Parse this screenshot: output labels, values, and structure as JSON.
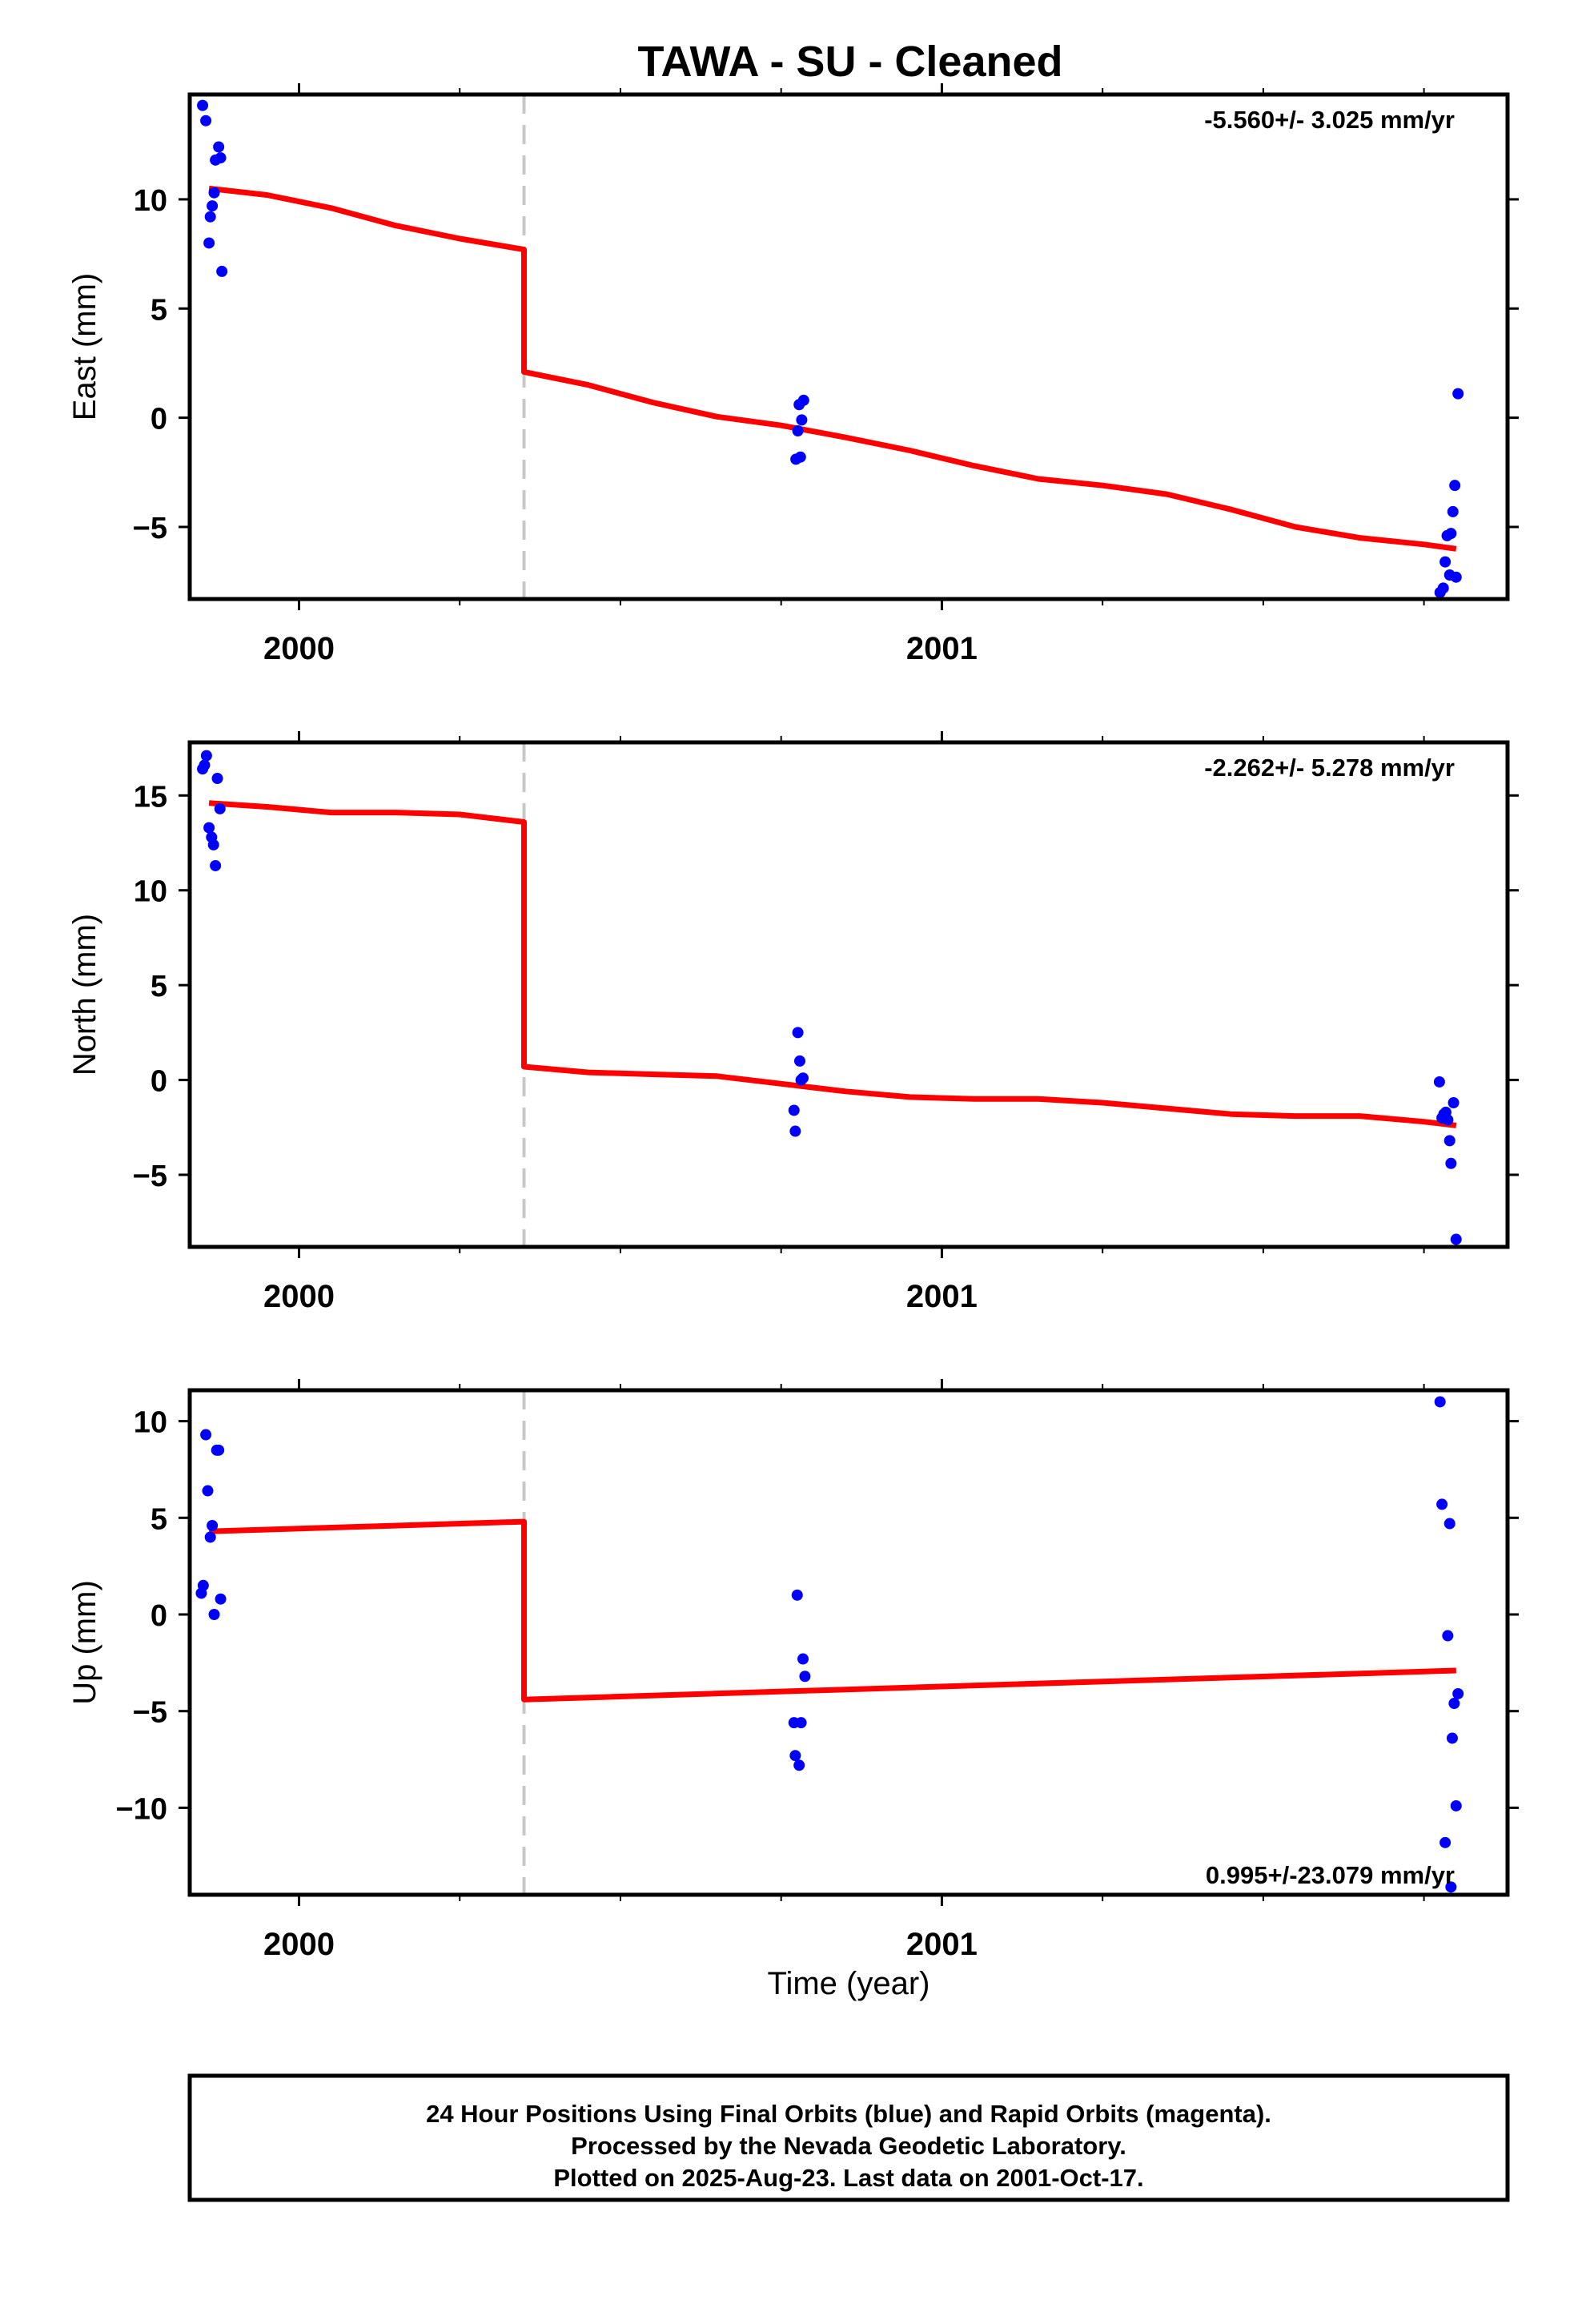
{
  "title": "TAWA  - SU - Cleaned",
  "xlabel": "Time (year)",
  "colors": {
    "data": "#0000ff",
    "model": "#ff0000",
    "break": "#c8c8c8",
    "frame": "#000000"
  },
  "footer": {
    "lines": [
      "24 Hour Positions Using Final Orbits (blue) and Rapid Orbits (magenta).",
      "Processed by the Nevada Geodetic Laboratory.",
      "Plotted on 2025-Aug-23. Last data on 2001-Oct-17."
    ]
  },
  "chart_data": [
    {
      "type": "scatter",
      "name": "east",
      "ylabel": "East (mm)",
      "rate_label": "-5.560+/- 3.025 mm/yr",
      "xlim": [
        1999.83,
        2001.88
      ],
      "ylim": [
        -8.3,
        14.8
      ],
      "x_ticks": [
        2000,
        2001
      ],
      "x_minor_ticks": [
        2000.25,
        2000.5,
        2000.75,
        2001.25,
        2001.5,
        2001.75
      ],
      "y_ticks": [
        -5,
        0,
        5,
        10
      ],
      "y_tick_labels": [
        "−5",
        "0",
        "5",
        "10"
      ],
      "break_x": 2000.35,
      "points": [
        [
          1999.85,
          14.3
        ],
        [
          1999.855,
          13.6
        ],
        [
          1999.86,
          8.0
        ],
        [
          1999.862,
          9.2
        ],
        [
          1999.865,
          9.7
        ],
        [
          1999.868,
          10.3
        ],
        [
          1999.87,
          11.8
        ],
        [
          1999.875,
          12.4
        ],
        [
          1999.878,
          11.9
        ],
        [
          1999.88,
          6.7
        ],
        [
          2000.773,
          -1.9
        ],
        [
          2000.776,
          -0.6
        ],
        [
          2000.778,
          0.6
        ],
        [
          2000.78,
          -1.8
        ],
        [
          2000.782,
          -0.1
        ],
        [
          2000.785,
          0.8
        ],
        [
          2001.775,
          -8.0
        ],
        [
          2001.78,
          -7.8
        ],
        [
          2001.783,
          -6.6
        ],
        [
          2001.786,
          -5.4
        ],
        [
          2001.79,
          -7.2
        ],
        [
          2001.792,
          -5.3
        ],
        [
          2001.795,
          -4.3
        ],
        [
          2001.798,
          -3.1
        ],
        [
          2001.8,
          -7.3
        ],
        [
          2001.803,
          1.1
        ]
      ],
      "model": [
        [
          [
            1999.86,
            10.5
          ],
          [
            1999.95,
            10.2
          ],
          [
            2000.05,
            9.6
          ],
          [
            2000.15,
            8.8
          ],
          [
            2000.25,
            8.2
          ],
          [
            2000.35,
            7.7
          ]
        ],
        [
          [
            2000.35,
            2.1
          ],
          [
            2000.45,
            1.5
          ],
          [
            2000.55,
            0.7
          ],
          [
            2000.65,
            0.05
          ],
          [
            2000.75,
            -0.35
          ],
          [
            2000.85,
            -0.9
          ],
          [
            2000.95,
            -1.5
          ],
          [
            2001.05,
            -2.2
          ],
          [
            2001.15,
            -2.8
          ],
          [
            2001.25,
            -3.1
          ],
          [
            2001.35,
            -3.5
          ],
          [
            2001.45,
            -4.2
          ],
          [
            2001.55,
            -5.0
          ],
          [
            2001.65,
            -5.5
          ],
          [
            2001.75,
            -5.8
          ],
          [
            2001.8,
            -6.0
          ]
        ]
      ]
    },
    {
      "type": "scatter",
      "name": "north",
      "ylabel": "North (mm)",
      "rate_label": "-2.262+/- 5.278 mm/yr",
      "xlim": [
        1999.83,
        2001.88
      ],
      "ylim": [
        -8.8,
        17.8
      ],
      "x_ticks": [
        2000,
        2001
      ],
      "x_minor_ticks": [
        2000.25,
        2000.5,
        2000.75,
        2001.25,
        2001.5,
        2001.75
      ],
      "y_ticks": [
        -5,
        0,
        5,
        10,
        15
      ],
      "y_tick_labels": [
        "−5",
        "0",
        "5",
        "10",
        "15"
      ],
      "break_x": 2000.35,
      "points": [
        [
          1999.85,
          16.4
        ],
        [
          1999.853,
          16.6
        ],
        [
          1999.856,
          17.1
        ],
        [
          1999.86,
          13.3
        ],
        [
          1999.864,
          12.8
        ],
        [
          1999.867,
          12.4
        ],
        [
          1999.87,
          11.3
        ],
        [
          1999.873,
          15.9
        ],
        [
          1999.877,
          14.3
        ],
        [
          2000.77,
          -1.6
        ],
        [
          2000.772,
          -2.7
        ],
        [
          2000.776,
          2.5
        ],
        [
          2000.779,
          1.0
        ],
        [
          2000.781,
          0.0
        ],
        [
          2000.784,
          0.1
        ],
        [
          2001.774,
          -0.1
        ],
        [
          2001.778,
          -2.0
        ],
        [
          2001.781,
          -1.8
        ],
        [
          2001.784,
          -1.7
        ],
        [
          2001.787,
          -2.1
        ],
        [
          2001.79,
          -3.2
        ],
        [
          2001.792,
          -4.4
        ],
        [
          2001.796,
          -1.2
        ],
        [
          2001.8,
          -8.4
        ]
      ],
      "model": [
        [
          [
            1999.86,
            14.6
          ],
          [
            1999.95,
            14.4
          ],
          [
            2000.05,
            14.1
          ],
          [
            2000.15,
            14.1
          ],
          [
            2000.25,
            14.0
          ],
          [
            2000.35,
            13.6
          ]
        ],
        [
          [
            2000.35,
            0.7
          ],
          [
            2000.45,
            0.4
          ],
          [
            2000.55,
            0.3
          ],
          [
            2000.65,
            0.2
          ],
          [
            2000.75,
            -0.2
          ],
          [
            2000.85,
            -0.6
          ],
          [
            2000.95,
            -0.9
          ],
          [
            2001.05,
            -1.0
          ],
          [
            2001.15,
            -1.0
          ],
          [
            2001.25,
            -1.2
          ],
          [
            2001.35,
            -1.5
          ],
          [
            2001.45,
            -1.8
          ],
          [
            2001.55,
            -1.9
          ],
          [
            2001.65,
            -1.9
          ],
          [
            2001.75,
            -2.2
          ],
          [
            2001.8,
            -2.4
          ]
        ]
      ]
    },
    {
      "type": "scatter",
      "name": "up",
      "ylabel": "Up (mm)",
      "rate_label": "0.995+/-23.079 mm/yr",
      "xlim": [
        1999.83,
        2001.88
      ],
      "ylim": [
        -14.5,
        11.6
      ],
      "x_ticks": [
        2000,
        2001
      ],
      "x_minor_ticks": [
        2000.25,
        2000.5,
        2000.75,
        2001.25,
        2001.5,
        2001.75
      ],
      "y_ticks": [
        -10,
        -5,
        0,
        5,
        10
      ],
      "y_tick_labels": [
        "−10",
        "−5",
        "0",
        "5",
        "10"
      ],
      "break_x": 2000.35,
      "points": [
        [
          1999.848,
          1.1
        ],
        [
          1999.851,
          1.5
        ],
        [
          1999.855,
          9.3
        ],
        [
          1999.858,
          6.4
        ],
        [
          1999.862,
          4.0
        ],
        [
          1999.865,
          4.6
        ],
        [
          1999.868,
          0.0
        ],
        [
          1999.872,
          8.5
        ],
        [
          1999.875,
          8.5
        ],
        [
          1999.878,
          0.8
        ],
        [
          2000.77,
          -5.6
        ],
        [
          2000.772,
          -7.3
        ],
        [
          2000.775,
          1.0
        ],
        [
          2000.778,
          -7.8
        ],
        [
          2000.781,
          -5.6
        ],
        [
          2000.784,
          -2.3
        ],
        [
          2000.787,
          -3.2
        ],
        [
          2001.775,
          11.0
        ],
        [
          2001.778,
          5.7
        ],
        [
          2001.783,
          -11.8
        ],
        [
          2001.787,
          -1.1
        ],
        [
          2001.79,
          4.7
        ],
        [
          2001.792,
          -14.1
        ],
        [
          2001.794,
          -6.4
        ],
        [
          2001.797,
          -4.6
        ],
        [
          2001.8,
          -9.9
        ],
        [
          2001.803,
          -4.1
        ]
      ],
      "model": [
        [
          [
            1999.86,
            4.3
          ],
          [
            2000.35,
            4.8
          ]
        ],
        [
          [
            2000.35,
            -4.4
          ],
          [
            2001.8,
            -2.9
          ]
        ]
      ]
    }
  ]
}
